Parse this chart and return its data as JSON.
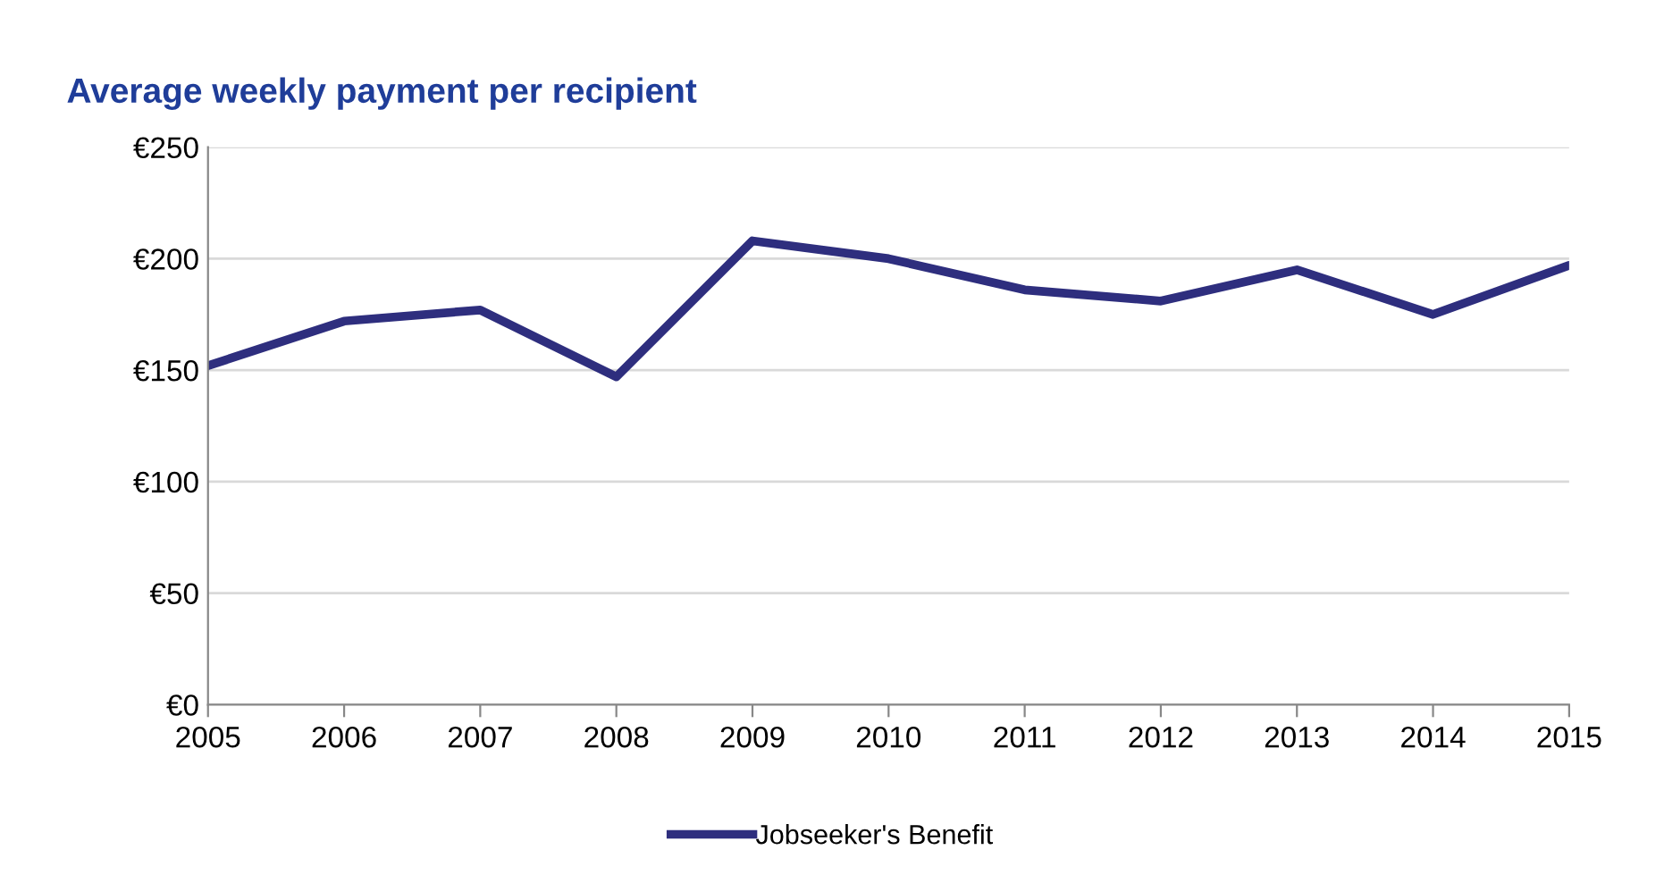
{
  "chart_data": {
    "type": "line",
    "title": "Average weekly payment per recipient",
    "x": [
      2005,
      2006,
      2007,
      2008,
      2009,
      2010,
      2011,
      2012,
      2013,
      2014,
      2015
    ],
    "series": [
      {
        "name": "Jobseeker's Benefit",
        "color": "#2e2e7e",
        "values": [
          152,
          172,
          177,
          147,
          208,
          200,
          186,
          181,
          195,
          175,
          197
        ]
      }
    ],
    "xlim": [
      2005,
      2015
    ],
    "xticks": [
      2005,
      2006,
      2007,
      2008,
      2009,
      2010,
      2011,
      2012,
      2013,
      2014,
      2015
    ],
    "ylim": [
      0,
      250
    ],
    "yticks": [
      {
        "value": 0,
        "label": "€0"
      },
      {
        "value": 50,
        "label": "€50"
      },
      {
        "value": 100,
        "label": "€100"
      },
      {
        "value": 150,
        "label": "€150"
      },
      {
        "value": 200,
        "label": "€200"
      },
      {
        "value": 250,
        "label": "€250"
      }
    ],
    "grid": "y",
    "legend": "bottom",
    "marker": "none",
    "line_style": "solid"
  }
}
